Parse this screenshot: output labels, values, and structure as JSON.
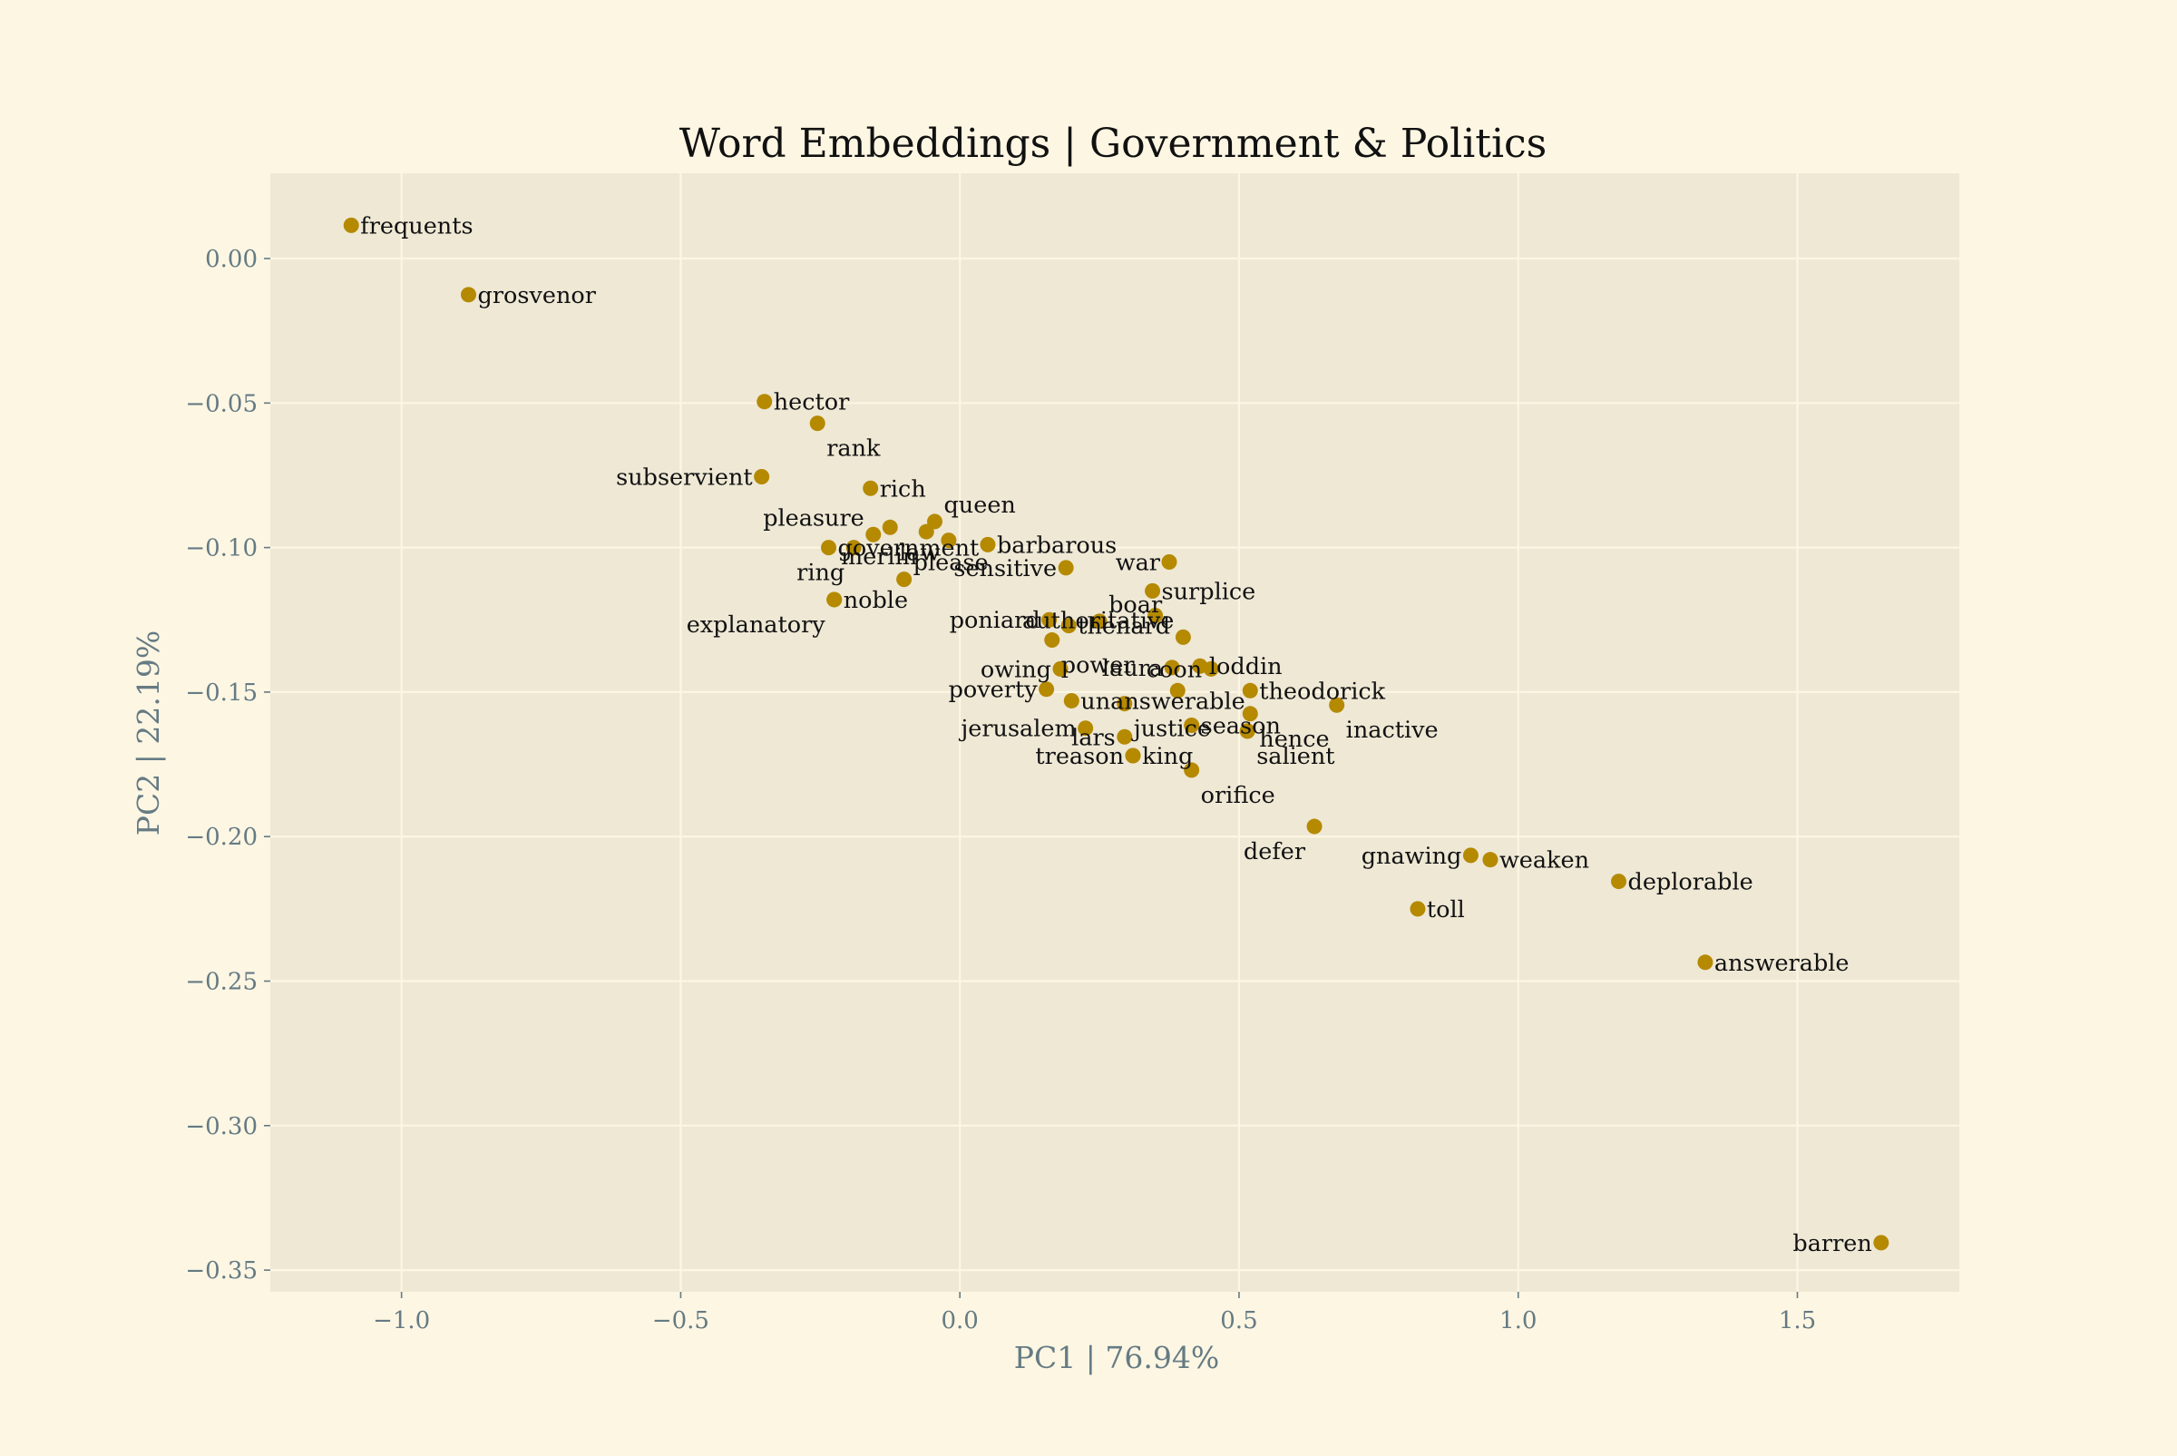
{
  "chart_data": {
    "type": "scatter",
    "title": "Word Embeddings | Government & Politics",
    "xlabel": "PC1 | 76.94%",
    "ylabel": "PC2 | 22.19%",
    "xlim": [
      -1.235,
      1.79
    ],
    "ylim": [
      -0.3575,
      0.0295
    ],
    "xticks": [
      -1.0,
      -0.5,
      0.0,
      0.5,
      1.0,
      1.5
    ],
    "xtick_labels": [
      "−1.0",
      "−0.5",
      "0.0",
      "0.5",
      "1.0",
      "1.5"
    ],
    "yticks": [
      0.0,
      -0.05,
      -0.1,
      -0.15,
      -0.2,
      -0.25,
      -0.3,
      -0.35
    ],
    "ytick_labels": [
      "0.00",
      "−0.05",
      "−0.10",
      "−0.15",
      "−0.20",
      "−0.25",
      "−0.30",
      "−0.35"
    ],
    "grid": true,
    "colors": {
      "page_background": "#fdf6e3",
      "plot_background": "#eee8d5",
      "point": "#b58900",
      "grid": "#fdf6e3",
      "axis_text": "#657b83",
      "label_text": "#111111"
    },
    "points": [
      {
        "label": "frequents",
        "x": -1.09,
        "y": 0.0115,
        "label_pos": "right"
      },
      {
        "label": "grosvenor",
        "x": -0.88,
        "y": -0.0125,
        "label_pos": "right"
      },
      {
        "label": "hector",
        "x": -0.35,
        "y": -0.0495,
        "label_pos": "right"
      },
      {
        "label": "rank",
        "x": -0.255,
        "y": -0.057,
        "label_pos": "below-right"
      },
      {
        "label": "subservient",
        "x": -0.355,
        "y": -0.0755,
        "label_pos": "left"
      },
      {
        "label": "rich",
        "x": -0.16,
        "y": -0.0795,
        "label_pos": "right"
      },
      {
        "label": "queen",
        "x": -0.045,
        "y": -0.091,
        "label_pos": "above-right"
      },
      {
        "label": "pleasure",
        "x": -0.155,
        "y": -0.0955,
        "label_pos": "above-left"
      },
      {
        "label": "government",
        "x": -0.235,
        "y": -0.1,
        "label_pos": "right"
      },
      {
        "label": "law",
        "x": -0.125,
        "y": -0.093,
        "label_pos": "below-right"
      },
      {
        "label": "merlin",
        "x": -0.06,
        "y": -0.0945,
        "label_pos": "below-left"
      },
      {
        "label": "barbarous",
        "x": 0.05,
        "y": -0.099,
        "label_pos": "right"
      },
      {
        "label": "",
        "x": -0.02,
        "y": -0.0975,
        "label_pos": "none"
      },
      {
        "label": "please",
        "x": -0.1,
        "y": -0.111,
        "label_pos": "above-right"
      },
      {
        "label": "ring",
        "x": -0.19,
        "y": -0.1,
        "label_pos": "below-left"
      },
      {
        "label": "noble",
        "x": -0.225,
        "y": -0.118,
        "label_pos": "right"
      },
      {
        "label": "explanatory",
        "x": -0.225,
        "y": -0.118,
        "label_pos": "below-left"
      },
      {
        "label": "sensitive",
        "x": 0.19,
        "y": -0.107,
        "label_pos": "left"
      },
      {
        "label": "war",
        "x": 0.375,
        "y": -0.105,
        "label_pos": "left"
      },
      {
        "label": "surplice",
        "x": 0.345,
        "y": -0.115,
        "label_pos": "right"
      },
      {
        "label": "boar",
        "x": 0.25,
        "y": -0.1255,
        "label_pos": "above-right"
      },
      {
        "label": "poniard",
        "x": 0.16,
        "y": -0.125,
        "label_pos": "left"
      },
      {
        "label": "thenard",
        "x": 0.195,
        "y": -0.127,
        "label_pos": "right"
      },
      {
        "label": "",
        "x": 0.35,
        "y": -0.1235,
        "label_pos": "none"
      },
      {
        "label": "authoritative",
        "x": 0.4,
        "y": -0.131,
        "label_pos": "above-left"
      },
      {
        "label": "power",
        "x": 0.165,
        "y": -0.132,
        "label_pos": "below-right"
      },
      {
        "label": "laura",
        "x": 0.38,
        "y": -0.1415,
        "label_pos": "left"
      },
      {
        "label": "loddin",
        "x": 0.43,
        "y": -0.141,
        "label_pos": "right"
      },
      {
        "label": "coon",
        "x": 0.45,
        "y": -0.142,
        "label_pos": "left"
      },
      {
        "label": "owing",
        "x": 0.18,
        "y": -0.142,
        "label_pos": "left"
      },
      {
        "label": "poverty",
        "x": 0.155,
        "y": -0.149,
        "label_pos": "left"
      },
      {
        "label": "unanswerable",
        "x": 0.2,
        "y": -0.153,
        "label_pos": "right"
      },
      {
        "label": "",
        "x": 0.39,
        "y": -0.1495,
        "label_pos": "none"
      },
      {
        "label": "theodorick",
        "x": 0.52,
        "y": -0.1495,
        "label_pos": "right"
      },
      {
        "label": "inactive",
        "x": 0.675,
        "y": -0.1545,
        "label_pos": "below-right"
      },
      {
        "label": "justice",
        "x": 0.295,
        "y": -0.154,
        "label_pos": "below-right"
      },
      {
        "label": "hence",
        "x": 0.52,
        "y": -0.1575,
        "label_pos": "below-right"
      },
      {
        "label": "season",
        "x": 0.415,
        "y": -0.1615,
        "label_pos": "right"
      },
      {
        "label": "",
        "x": 0.515,
        "y": -0.1635,
        "label_pos": "none"
      },
      {
        "label": "jerusalem",
        "x": 0.225,
        "y": -0.1625,
        "label_pos": "left"
      },
      {
        "label": "lars",
        "x": 0.295,
        "y": -0.1655,
        "label_pos": "left"
      },
      {
        "label": "salient",
        "x": 0.515,
        "y": -0.1635,
        "label_pos": "below-right"
      },
      {
        "label": "king",
        "x": 0.31,
        "y": -0.172,
        "label_pos": "right"
      },
      {
        "label": "treason",
        "x": 0.31,
        "y": -0.172,
        "label_pos": "left"
      },
      {
        "label": "orifice",
        "x": 0.415,
        "y": -0.177,
        "label_pos": "below-right"
      },
      {
        "label": "defer",
        "x": 0.635,
        "y": -0.1965,
        "label_pos": "below-left"
      },
      {
        "label": "gnawing",
        "x": 0.915,
        "y": -0.2065,
        "label_pos": "left"
      },
      {
        "label": "weaken",
        "x": 0.95,
        "y": -0.208,
        "label_pos": "right"
      },
      {
        "label": "deplorable",
        "x": 1.18,
        "y": -0.2155,
        "label_pos": "right"
      },
      {
        "label": "toll",
        "x": 0.82,
        "y": -0.225,
        "label_pos": "right"
      },
      {
        "label": "answerable",
        "x": 1.335,
        "y": -0.2435,
        "label_pos": "right"
      },
      {
        "label": "barren",
        "x": 1.65,
        "y": -0.3405,
        "label_pos": "left"
      }
    ]
  }
}
